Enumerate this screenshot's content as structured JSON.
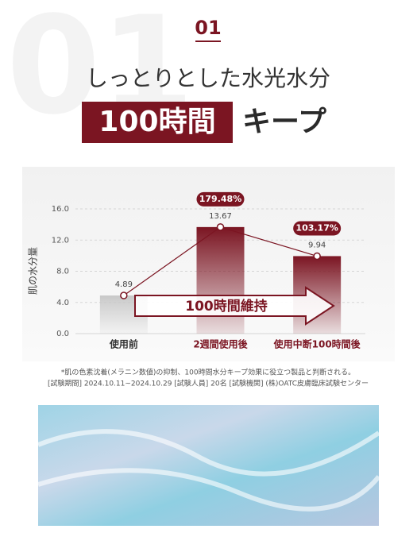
{
  "header": {
    "bg_number": "01",
    "number": "01",
    "title": "しっとりとした水光水分",
    "highlight": "100時間",
    "title_end": "キープ"
  },
  "chart_data": {
    "type": "bar",
    "ylabel": "肌の水分量",
    "categories": [
      "使用前",
      "2週間使用後",
      "使用中断100時間後"
    ],
    "values": [
      4.89,
      13.67,
      9.94
    ],
    "colors": [
      "#c9c9c9",
      "#7b1522",
      "#7b1522"
    ],
    "line_color": "#7b1522",
    "ylim": [
      0,
      16
    ],
    "yticks": [
      {
        "value": 0,
        "label": "0.0"
      },
      {
        "value": 4,
        "label": "4.0"
      },
      {
        "value": 8,
        "label": "8.0"
      },
      {
        "value": 12,
        "label": "12.0"
      },
      {
        "value": 16,
        "label": "16.0"
      }
    ],
    "grid": true,
    "annotations": [
      "179.48%",
      "103.17%",
      "100時間維持"
    ]
  },
  "footnote": [
    "*肌の色素沈着(メラニン数値)の抑制、100時間水分キープ効果に役立つ製品と判断される。",
    "[試験期間] 2024.10.11~2024.10.29 [試験人員] 20名 [試験機関] (株)OATC皮膚臨床試験センター"
  ]
}
